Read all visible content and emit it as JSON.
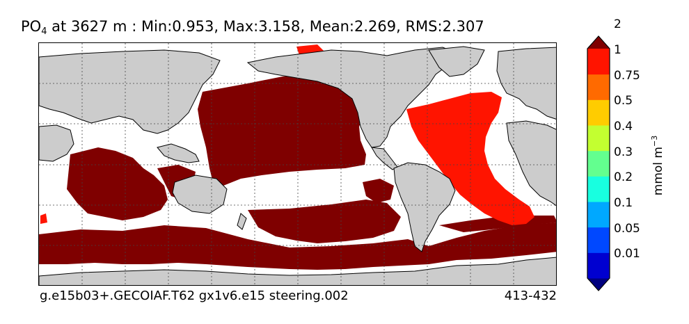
{
  "title": {
    "variable_main": "PO",
    "variable_sub": "4",
    "rest": " at 3627 m : Min:0.953, Max:3.158, Mean:2.269, RMS:2.307"
  },
  "caption": {
    "case": "g.e15b03+.GECOIAF.T62 gx1v6.e15 steering.002",
    "years": "413-432"
  },
  "colorbar": {
    "units_main": "mmol m",
    "units_exp": "−3",
    "levels": [
      "0.01",
      "0.05",
      "0.1",
      "0.2",
      "0.3",
      "0.4",
      "0.5",
      "0.75",
      "1",
      "2"
    ],
    "colors": [
      "#00007f",
      "#0000d0",
      "#0048ff",
      "#00a8ff",
      "#18ffe0",
      "#63ff8f",
      "#c3ff30",
      "#ffcc00",
      "#ff6a00",
      "#ff1400",
      "#7f0000"
    ]
  },
  "map": {
    "land_color": "#cccccc",
    "ocean_missing_color": "#ffffff",
    "pacific_indian_color": "#7f0000",
    "atlantic_color": "#ff1400"
  }
}
